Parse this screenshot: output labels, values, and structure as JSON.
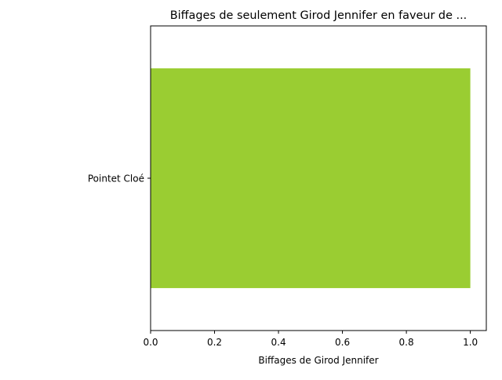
{
  "chart_data": {
    "type": "bar",
    "orientation": "horizontal",
    "title": "Biffages de seulement Girod Jennifer en faveur de ...",
    "xlabel": "Biffages de Girod Jennifer",
    "ylabel": "",
    "categories": [
      "Pointet Cloé"
    ],
    "values": [
      1.0
    ],
    "xlim": [
      0,
      1.05
    ],
    "xticks": [
      0.0,
      0.2,
      0.4,
      0.6,
      0.8,
      1.0
    ],
    "xtick_labels": [
      "0.0",
      "0.2",
      "0.4",
      "0.6",
      "0.8",
      "1.0"
    ],
    "grid": false,
    "legend": "none",
    "bar_color": "#9acd32"
  }
}
